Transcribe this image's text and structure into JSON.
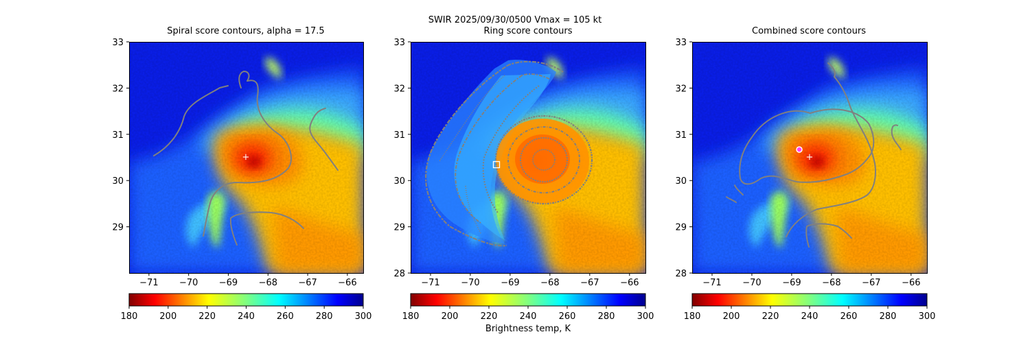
{
  "suptitle": "SWIR  2025/09/30/0500    Vmax = 105 kt",
  "colorbar": {
    "label": "Brightness temp, K",
    "ticks": [
      180,
      200,
      220,
      240,
      260,
      280,
      300
    ],
    "colormap": "jet_r",
    "range": [
      180,
      300
    ]
  },
  "chart_data": [
    {
      "type": "heatmap",
      "title": "Spiral score contours, alpha = 17.5",
      "xticks": [
        -71,
        -70,
        -69,
        -68,
        -67,
        -66
      ],
      "yticks": [
        29,
        30,
        31,
        32,
        33
      ],
      "xlim": [
        -71.5,
        -65.6
      ],
      "ylim": [
        28,
        33
      ],
      "center_marker": {
        "symbol": "+",
        "lon": -68.6,
        "lat": 30.5
      }
    },
    {
      "type": "heatmap",
      "title": "Ring score contours",
      "xticks": [
        -71,
        -70,
        -69,
        -68,
        -67,
        -66
      ],
      "yticks": [
        28,
        29,
        30,
        31,
        32,
        33
      ],
      "xlim": [
        -71.5,
        -65.6
      ],
      "ylim": [
        28,
        33
      ],
      "center_marker": {
        "symbol": "square",
        "lon": -69.35,
        "lat": 30.35
      }
    },
    {
      "type": "heatmap",
      "title": "Combined score contours",
      "xticks": [
        -71,
        -70,
        -69,
        -68,
        -67,
        -66
      ],
      "yticks": [
        28,
        29,
        30,
        31,
        32,
        33
      ],
      "xlim": [
        -71.5,
        -65.6
      ],
      "ylim": [
        28,
        33
      ],
      "center_marker": {
        "symbol": "+",
        "lon": -68.6,
        "lat": 30.5
      },
      "best_center_marker": {
        "symbol": "circle",
        "lon": -68.85,
        "lat": 30.67
      }
    }
  ]
}
